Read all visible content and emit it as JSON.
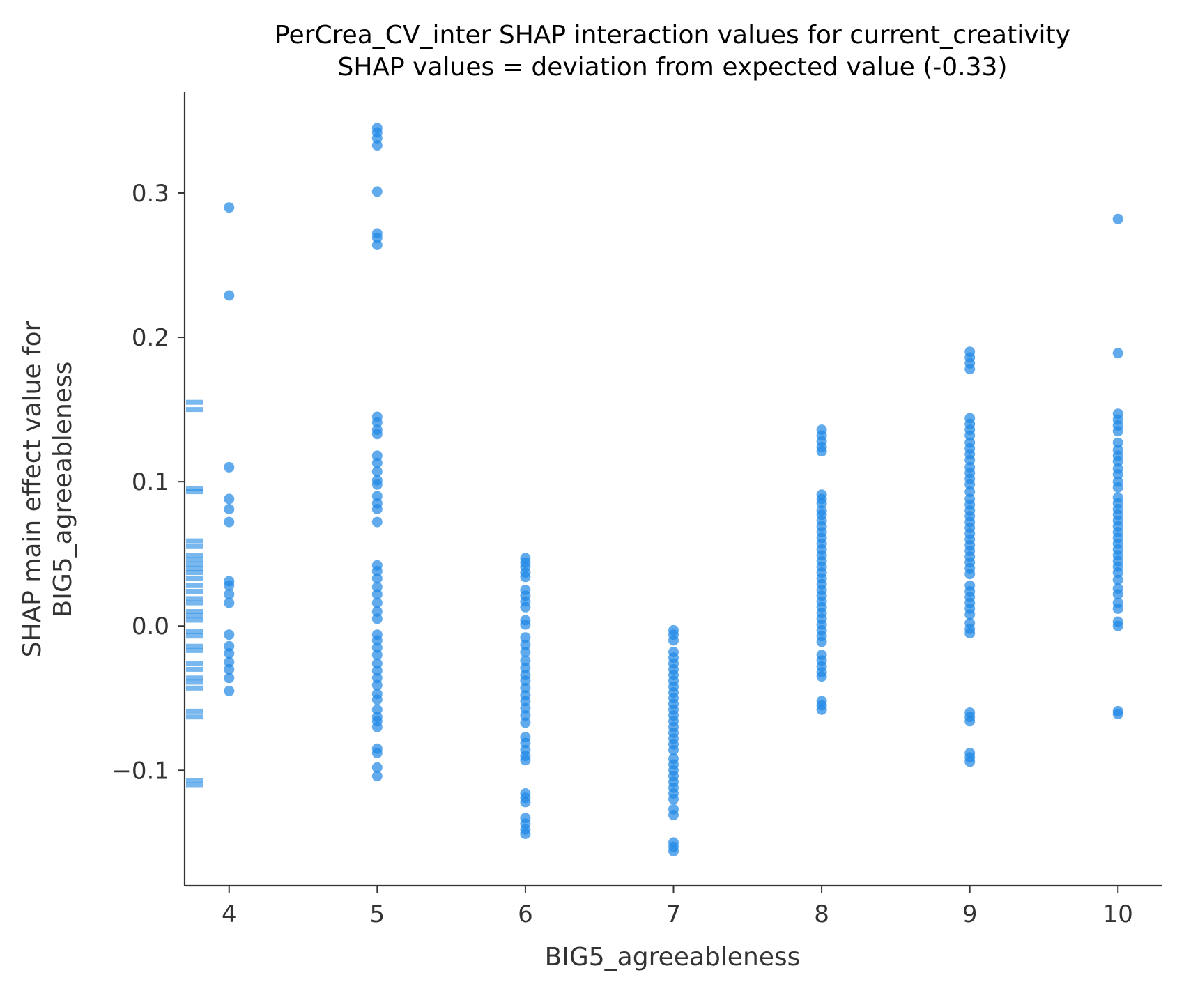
{
  "chart_data": {
    "type": "scatter",
    "title": "PerCrea_CV_inter SHAP interaction values for current_creativity",
    "subtitle": "SHAP values = deviation from expected value (-0.33)",
    "xlabel": "BIG5_agreeableness",
    "ylabel_line1": "SHAP main effect value for",
    "ylabel_line2": "BIG5_agreeableness",
    "xlim": [
      3.7,
      10.3
    ],
    "ylim": [
      -0.18,
      0.37
    ],
    "x_ticks": [
      4,
      5,
      6,
      7,
      8,
      9,
      10
    ],
    "x_tick_labels": [
      "4",
      "5",
      "6",
      "7",
      "8",
      "9",
      "10"
    ],
    "y_ticks": [
      -0.1,
      0.0,
      0.1,
      0.2,
      0.3
    ],
    "y_tick_labels": [
      "−0.1",
      "0.0",
      "0.1",
      "0.2",
      "0.3"
    ],
    "grid": false,
    "marker_color": "#1E88E5",
    "rug_color": "#1E88E5",
    "series": [
      {
        "values": [
          {
            "x": 4,
            "y": 0.29
          },
          {
            "x": 4,
            "y": 0.229
          },
          {
            "x": 4,
            "y": 0.11
          },
          {
            "x": 4,
            "y": 0.088
          },
          {
            "x": 4,
            "y": 0.081
          },
          {
            "x": 4,
            "y": 0.072
          },
          {
            "x": 4,
            "y": 0.031
          },
          {
            "x": 4,
            "y": 0.028
          },
          {
            "x": 4,
            "y": 0.022
          },
          {
            "x": 4,
            "y": 0.016
          },
          {
            "x": 4,
            "y": -0.006
          },
          {
            "x": 4,
            "y": -0.014
          },
          {
            "x": 4,
            "y": -0.019
          },
          {
            "x": 4,
            "y": -0.025
          },
          {
            "x": 4,
            "y": -0.03
          },
          {
            "x": 4,
            "y": -0.036
          },
          {
            "x": 4,
            "y": -0.045
          },
          {
            "x": 5,
            "y": 0.345
          },
          {
            "x": 5,
            "y": 0.342
          },
          {
            "x": 5,
            "y": 0.338
          },
          {
            "x": 5,
            "y": 0.333
          },
          {
            "x": 5,
            "y": 0.301
          },
          {
            "x": 5,
            "y": 0.272
          },
          {
            "x": 5,
            "y": 0.269
          },
          {
            "x": 5,
            "y": 0.264
          },
          {
            "x": 5,
            "y": 0.145
          },
          {
            "x": 5,
            "y": 0.141
          },
          {
            "x": 5,
            "y": 0.136
          },
          {
            "x": 5,
            "y": 0.133
          },
          {
            "x": 5,
            "y": 0.118
          },
          {
            "x": 5,
            "y": 0.113
          },
          {
            "x": 5,
            "y": 0.107
          },
          {
            "x": 5,
            "y": 0.101
          },
          {
            "x": 5,
            "y": 0.098
          },
          {
            "x": 5,
            "y": 0.09
          },
          {
            "x": 5,
            "y": 0.085
          },
          {
            "x": 5,
            "y": 0.081
          },
          {
            "x": 5,
            "y": 0.072
          },
          {
            "x": 5,
            "y": 0.042
          },
          {
            "x": 5,
            "y": 0.038
          },
          {
            "x": 5,
            "y": 0.033
          },
          {
            "x": 5,
            "y": 0.027
          },
          {
            "x": 5,
            "y": 0.022
          },
          {
            "x": 5,
            "y": 0.016
          },
          {
            "x": 5,
            "y": 0.01
          },
          {
            "x": 5,
            "y": 0.005
          },
          {
            "x": 5,
            "y": -0.006
          },
          {
            "x": 5,
            "y": -0.01
          },
          {
            "x": 5,
            "y": -0.015
          },
          {
            "x": 5,
            "y": -0.02
          },
          {
            "x": 5,
            "y": -0.026
          },
          {
            "x": 5,
            "y": -0.031
          },
          {
            "x": 5,
            "y": -0.036
          },
          {
            "x": 5,
            "y": -0.041
          },
          {
            "x": 5,
            "y": -0.047
          },
          {
            "x": 5,
            "y": -0.051
          },
          {
            "x": 5,
            "y": -0.058
          },
          {
            "x": 5,
            "y": -0.063
          },
          {
            "x": 5,
            "y": -0.066
          },
          {
            "x": 5,
            "y": -0.07
          },
          {
            "x": 5,
            "y": -0.085
          },
          {
            "x": 5,
            "y": -0.088
          },
          {
            "x": 5,
            "y": -0.098
          },
          {
            "x": 5,
            "y": -0.104
          },
          {
            "x": 6,
            "y": 0.047
          },
          {
            "x": 6,
            "y": 0.044
          },
          {
            "x": 6,
            "y": 0.041
          },
          {
            "x": 6,
            "y": 0.037
          },
          {
            "x": 6,
            "y": 0.034
          },
          {
            "x": 6,
            "y": 0.025
          },
          {
            "x": 6,
            "y": 0.021
          },
          {
            "x": 6,
            "y": 0.017
          },
          {
            "x": 6,
            "y": 0.013
          },
          {
            "x": 6,
            "y": 0.004
          },
          {
            "x": 6,
            "y": 0.001
          },
          {
            "x": 6,
            "y": -0.008
          },
          {
            "x": 6,
            "y": -0.013
          },
          {
            "x": 6,
            "y": -0.018
          },
          {
            "x": 6,
            "y": -0.024
          },
          {
            "x": 6,
            "y": -0.029
          },
          {
            "x": 6,
            "y": -0.034
          },
          {
            "x": 6,
            "y": -0.038
          },
          {
            "x": 6,
            "y": -0.043
          },
          {
            "x": 6,
            "y": -0.048
          },
          {
            "x": 6,
            "y": -0.052
          },
          {
            "x": 6,
            "y": -0.057
          },
          {
            "x": 6,
            "y": -0.062
          },
          {
            "x": 6,
            "y": -0.067
          },
          {
            "x": 6,
            "y": -0.077
          },
          {
            "x": 6,
            "y": -0.081
          },
          {
            "x": 6,
            "y": -0.086
          },
          {
            "x": 6,
            "y": -0.09
          },
          {
            "x": 6,
            "y": -0.093
          },
          {
            "x": 6,
            "y": -0.116
          },
          {
            "x": 6,
            "y": -0.119
          },
          {
            "x": 6,
            "y": -0.122
          },
          {
            "x": 6,
            "y": -0.133
          },
          {
            "x": 6,
            "y": -0.137
          },
          {
            "x": 6,
            "y": -0.141
          },
          {
            "x": 6,
            "y": -0.144
          },
          {
            "x": 7,
            "y": -0.003
          },
          {
            "x": 7,
            "y": -0.006
          },
          {
            "x": 7,
            "y": -0.01
          },
          {
            "x": 7,
            "y": -0.018
          },
          {
            "x": 7,
            "y": -0.022
          },
          {
            "x": 7,
            "y": -0.026
          },
          {
            "x": 7,
            "y": -0.03
          },
          {
            "x": 7,
            "y": -0.034
          },
          {
            "x": 7,
            "y": -0.038
          },
          {
            "x": 7,
            "y": -0.042
          },
          {
            "x": 7,
            "y": -0.046
          },
          {
            "x": 7,
            "y": -0.05
          },
          {
            "x": 7,
            "y": -0.054
          },
          {
            "x": 7,
            "y": -0.058
          },
          {
            "x": 7,
            "y": -0.062
          },
          {
            "x": 7,
            "y": -0.066
          },
          {
            "x": 7,
            "y": -0.07
          },
          {
            "x": 7,
            "y": -0.074
          },
          {
            "x": 7,
            "y": -0.078
          },
          {
            "x": 7,
            "y": -0.082
          },
          {
            "x": 7,
            "y": -0.086
          },
          {
            "x": 7,
            "y": -0.092
          },
          {
            "x": 7,
            "y": -0.096
          },
          {
            "x": 7,
            "y": -0.1
          },
          {
            "x": 7,
            "y": -0.104
          },
          {
            "x": 7,
            "y": -0.108
          },
          {
            "x": 7,
            "y": -0.112
          },
          {
            "x": 7,
            "y": -0.116
          },
          {
            "x": 7,
            "y": -0.12
          },
          {
            "x": 7,
            "y": -0.127
          },
          {
            "x": 7,
            "y": -0.131
          },
          {
            "x": 7,
            "y": -0.15
          },
          {
            "x": 7,
            "y": -0.153
          },
          {
            "x": 7,
            "y": -0.156
          },
          {
            "x": 8,
            "y": 0.136
          },
          {
            "x": 8,
            "y": 0.132
          },
          {
            "x": 8,
            "y": 0.128
          },
          {
            "x": 8,
            "y": 0.124
          },
          {
            "x": 8,
            "y": 0.121
          },
          {
            "x": 8,
            "y": 0.091
          },
          {
            "x": 8,
            "y": 0.088
          },
          {
            "x": 8,
            "y": 0.085
          },
          {
            "x": 8,
            "y": 0.08
          },
          {
            "x": 8,
            "y": 0.077
          },
          {
            "x": 8,
            "y": 0.073
          },
          {
            "x": 8,
            "y": 0.069
          },
          {
            "x": 8,
            "y": 0.065
          },
          {
            "x": 8,
            "y": 0.061
          },
          {
            "x": 8,
            "y": 0.057
          },
          {
            "x": 8,
            "y": 0.053
          },
          {
            "x": 8,
            "y": 0.049
          },
          {
            "x": 8,
            "y": 0.045
          },
          {
            "x": 8,
            "y": 0.041
          },
          {
            "x": 8,
            "y": 0.037
          },
          {
            "x": 8,
            "y": 0.033
          },
          {
            "x": 8,
            "y": 0.029
          },
          {
            "x": 8,
            "y": 0.025
          },
          {
            "x": 8,
            "y": 0.021
          },
          {
            "x": 8,
            "y": 0.017
          },
          {
            "x": 8,
            "y": 0.013
          },
          {
            "x": 8,
            "y": 0.009
          },
          {
            "x": 8,
            "y": 0.005
          },
          {
            "x": 8,
            "y": 0.001
          },
          {
            "x": 8,
            "y": -0.003
          },
          {
            "x": 8,
            "y": -0.007
          },
          {
            "x": 8,
            "y": -0.011
          },
          {
            "x": 8,
            "y": -0.02
          },
          {
            "x": 8,
            "y": -0.024
          },
          {
            "x": 8,
            "y": -0.028
          },
          {
            "x": 8,
            "y": -0.032
          },
          {
            "x": 8,
            "y": -0.035
          },
          {
            "x": 8,
            "y": -0.052
          },
          {
            "x": 8,
            "y": -0.055
          },
          {
            "x": 8,
            "y": -0.058
          },
          {
            "x": 9,
            "y": 0.19
          },
          {
            "x": 9,
            "y": 0.186
          },
          {
            "x": 9,
            "y": 0.182
          },
          {
            "x": 9,
            "y": 0.178
          },
          {
            "x": 9,
            "y": 0.144
          },
          {
            "x": 9,
            "y": 0.14
          },
          {
            "x": 9,
            "y": 0.136
          },
          {
            "x": 9,
            "y": 0.132
          },
          {
            "x": 9,
            "y": 0.127
          },
          {
            "x": 9,
            "y": 0.123
          },
          {
            "x": 9,
            "y": 0.119
          },
          {
            "x": 9,
            "y": 0.115
          },
          {
            "x": 9,
            "y": 0.11
          },
          {
            "x": 9,
            "y": 0.106
          },
          {
            "x": 9,
            "y": 0.102
          },
          {
            "x": 9,
            "y": 0.098
          },
          {
            "x": 9,
            "y": 0.093
          },
          {
            "x": 9,
            "y": 0.088
          },
          {
            "x": 9,
            "y": 0.084
          },
          {
            "x": 9,
            "y": 0.08
          },
          {
            "x": 9,
            "y": 0.076
          },
          {
            "x": 9,
            "y": 0.072
          },
          {
            "x": 9,
            "y": 0.068
          },
          {
            "x": 9,
            "y": 0.064
          },
          {
            "x": 9,
            "y": 0.06
          },
          {
            "x": 9,
            "y": 0.056
          },
          {
            "x": 9,
            "y": 0.052
          },
          {
            "x": 9,
            "y": 0.048
          },
          {
            "x": 9,
            "y": 0.044
          },
          {
            "x": 9,
            "y": 0.04
          },
          {
            "x": 9,
            "y": 0.036
          },
          {
            "x": 9,
            "y": 0.028
          },
          {
            "x": 9,
            "y": 0.024
          },
          {
            "x": 9,
            "y": 0.02
          },
          {
            "x": 9,
            "y": 0.016
          },
          {
            "x": 9,
            "y": 0.012
          },
          {
            "x": 9,
            "y": 0.008
          },
          {
            "x": 9,
            "y": 0.002
          },
          {
            "x": 9,
            "y": -0.002
          },
          {
            "x": 9,
            "y": -0.005
          },
          {
            "x": 9,
            "y": -0.06
          },
          {
            "x": 9,
            "y": -0.063
          },
          {
            "x": 9,
            "y": -0.066
          },
          {
            "x": 9,
            "y": -0.088
          },
          {
            "x": 9,
            "y": -0.091
          },
          {
            "x": 9,
            "y": -0.094
          },
          {
            "x": 10,
            "y": 0.282
          },
          {
            "x": 10,
            "y": 0.189
          },
          {
            "x": 10,
            "y": 0.147
          },
          {
            "x": 10,
            "y": 0.143
          },
          {
            "x": 10,
            "y": 0.139
          },
          {
            "x": 10,
            "y": 0.135
          },
          {
            "x": 10,
            "y": 0.127
          },
          {
            "x": 10,
            "y": 0.122
          },
          {
            "x": 10,
            "y": 0.118
          },
          {
            "x": 10,
            "y": 0.114
          },
          {
            "x": 10,
            "y": 0.109
          },
          {
            "x": 10,
            "y": 0.105
          },
          {
            "x": 10,
            "y": 0.1
          },
          {
            "x": 10,
            "y": 0.096
          },
          {
            "x": 10,
            "y": 0.089
          },
          {
            "x": 10,
            "y": 0.085
          },
          {
            "x": 10,
            "y": 0.081
          },
          {
            "x": 10,
            "y": 0.077
          },
          {
            "x": 10,
            "y": 0.073
          },
          {
            "x": 10,
            "y": 0.069
          },
          {
            "x": 10,
            "y": 0.065
          },
          {
            "x": 10,
            "y": 0.061
          },
          {
            "x": 10,
            "y": 0.057
          },
          {
            "x": 10,
            "y": 0.053
          },
          {
            "x": 10,
            "y": 0.049
          },
          {
            "x": 10,
            "y": 0.045
          },
          {
            "x": 10,
            "y": 0.041
          },
          {
            "x": 10,
            "y": 0.037
          },
          {
            "x": 10,
            "y": 0.032
          },
          {
            "x": 10,
            "y": 0.026
          },
          {
            "x": 10,
            "y": 0.022
          },
          {
            "x": 10,
            "y": 0.016
          },
          {
            "x": 10,
            "y": 0.012
          },
          {
            "x": 10,
            "y": 0.003
          },
          {
            "x": 10,
            "y": 0.0
          },
          {
            "x": 10,
            "y": -0.059
          },
          {
            "x": 10,
            "y": -0.061
          }
        ]
      }
    ],
    "rug_y": [
      0.155,
      0.15,
      0.095,
      0.093,
      0.059,
      0.055,
      0.049,
      0.046,
      0.043,
      0.04,
      0.037,
      0.033,
      0.028,
      0.024,
      0.019,
      0.016,
      0.01,
      0.007,
      0.004,
      -0.004,
      -0.007,
      -0.014,
      -0.017,
      -0.026,
      -0.03,
      -0.036,
      -0.039,
      -0.043,
      -0.059,
      -0.063,
      -0.107,
      -0.11
    ]
  }
}
